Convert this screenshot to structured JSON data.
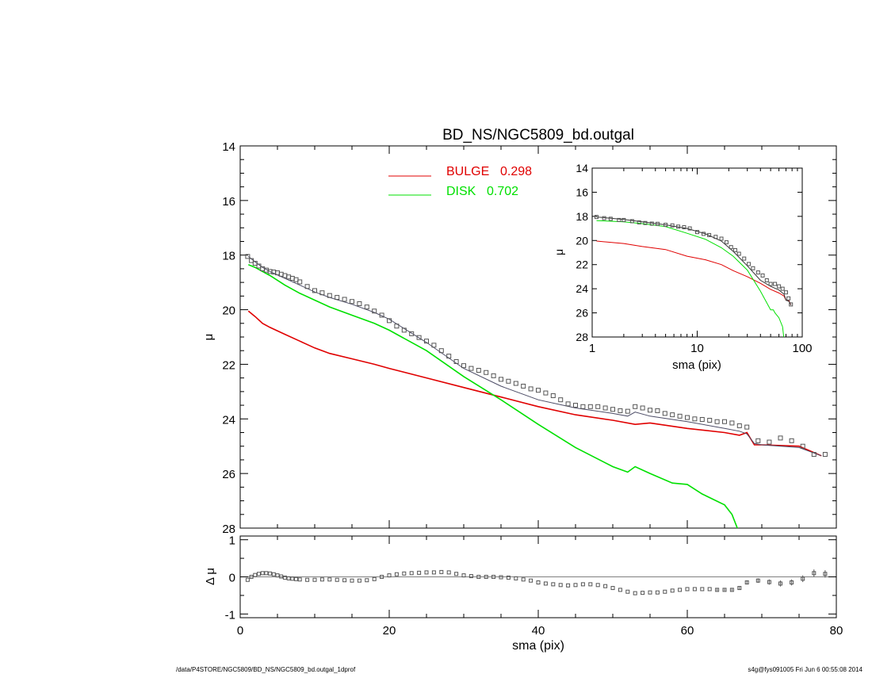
{
  "chart_data": [
    {
      "panel": "main",
      "type": "line",
      "title": "BD_NS/NGC5809_bd.outgal",
      "xlabel": "",
      "ylabel": "μ",
      "xlim": [
        0,
        80
      ],
      "ylim": [
        28,
        14
      ],
      "y_inverted": true,
      "yticks": [
        "14",
        "16",
        "18",
        "20",
        "22",
        "24",
        "26",
        "28"
      ],
      "legend_position": "top-center",
      "legend": [
        {
          "label": "BULGE",
          "value": "0.298",
          "color": "#e00000"
        },
        {
          "label": "DISK",
          "value": "0.702",
          "color": "#00e000"
        }
      ],
      "series": [
        {
          "name": "BULGE",
          "color": "#e00000",
          "x": [
            1.1,
            2,
            3,
            4,
            6,
            8,
            10,
            12,
            15,
            18,
            20,
            25,
            30,
            35,
            40,
            45,
            50,
            53,
            55,
            60,
            65,
            67,
            68,
            69,
            70,
            75,
            78
          ],
          "y": [
            20.05,
            20.25,
            20.5,
            20.65,
            20.9,
            21.15,
            21.4,
            21.6,
            21.8,
            22.0,
            22.15,
            22.5,
            22.85,
            23.2,
            23.55,
            23.85,
            24.05,
            24.2,
            24.15,
            24.35,
            24.5,
            24.6,
            24.5,
            24.95,
            24.95,
            25.0,
            25.35
          ]
        },
        {
          "name": "DISK",
          "color": "#00e000",
          "x": [
            1.1,
            2,
            3,
            4,
            6,
            8,
            10,
            12,
            15,
            18,
            20,
            25,
            30,
            35,
            40,
            45,
            50,
            52,
            53,
            55,
            58,
            60,
            62,
            65,
            66,
            67
          ],
          "y": [
            18.35,
            18.45,
            18.6,
            18.75,
            19.1,
            19.4,
            19.65,
            19.9,
            20.2,
            20.5,
            20.75,
            21.5,
            22.45,
            23.3,
            24.2,
            25.05,
            25.75,
            25.95,
            25.75,
            26.0,
            26.35,
            26.4,
            26.75,
            27.15,
            27.5,
            28.2
          ]
        },
        {
          "name": "model",
          "color": "#4c4c66",
          "x": [
            1.1,
            2,
            3,
            4,
            6,
            8,
            10,
            12,
            15,
            18,
            20,
            25,
            30,
            35,
            40,
            45,
            50,
            52,
            53,
            55,
            60,
            65,
            67,
            68,
            69,
            70,
            75,
            78
          ],
          "y": [
            18.05,
            18.25,
            18.45,
            18.6,
            18.85,
            19.1,
            19.35,
            19.55,
            19.8,
            20.1,
            20.35,
            21.2,
            22.15,
            22.8,
            23.3,
            23.6,
            23.8,
            23.9,
            23.75,
            23.9,
            24.1,
            24.35,
            24.45,
            24.55,
            24.9,
            24.95,
            25.05,
            25.35
          ]
        },
        {
          "name": "data",
          "type": "scatter",
          "marker": "square",
          "color": "#555555",
          "x": [
            1,
            1.5,
            2,
            2.5,
            3,
            3.5,
            4,
            4.5,
            5,
            5.5,
            6,
            6.5,
            7,
            7.5,
            8,
            9,
            10,
            11,
            12,
            13,
            14,
            15,
            16,
            17,
            18,
            19,
            20,
            21,
            22,
            23,
            24,
            25,
            26,
            27,
            28,
            29,
            30,
            31,
            32,
            33,
            34,
            35,
            36,
            37,
            38,
            39,
            40,
            41,
            42,
            43,
            44,
            45,
            46,
            47,
            48,
            49,
            50,
            51,
            52,
            53,
            54,
            55,
            56,
            57,
            58,
            59,
            60,
            61,
            62,
            63,
            64,
            65,
            66,
            67,
            68,
            69.5,
            71,
            72.5,
            74,
            75.5,
            77,
            78.5
          ],
          "y": [
            18.05,
            18.2,
            18.3,
            18.4,
            18.5,
            18.55,
            18.6,
            18.62,
            18.65,
            18.7,
            18.75,
            18.8,
            18.85,
            18.9,
            18.98,
            19.15,
            19.3,
            19.38,
            19.48,
            19.55,
            19.62,
            19.7,
            19.78,
            19.9,
            20.05,
            20.2,
            20.4,
            20.6,
            20.75,
            20.88,
            21.02,
            21.15,
            21.3,
            21.5,
            21.7,
            21.9,
            22.05,
            22.15,
            22.22,
            22.3,
            22.42,
            22.55,
            22.62,
            22.7,
            22.8,
            22.9,
            22.95,
            23.05,
            23.15,
            23.3,
            23.45,
            23.5,
            23.55,
            23.55,
            23.55,
            23.6,
            23.65,
            23.7,
            23.72,
            23.55,
            23.6,
            23.68,
            23.7,
            23.8,
            23.85,
            23.9,
            23.95,
            24.0,
            24.02,
            24.05,
            24.1,
            24.1,
            24.15,
            24.25,
            24.3,
            24.8,
            24.85,
            24.7,
            24.8,
            25.0,
            25.3,
            25.3
          ]
        }
      ]
    },
    {
      "panel": "inset",
      "type": "line",
      "xlabel": "sma (pix)",
      "ylabel": "μ",
      "x_scale": "log",
      "xlim": [
        1,
        100
      ],
      "ylim": [
        28,
        14
      ],
      "y_inverted": true,
      "xticks": [
        "1",
        "10",
        "100"
      ],
      "yticks": [
        "14",
        "16",
        "18",
        "20",
        "22",
        "24",
        "26",
        "28"
      ],
      "series": [
        {
          "name": "BULGE",
          "color": "#e00000",
          "x": [
            1.1,
            2,
            3,
            5,
            8,
            12,
            17,
            22,
            30,
            40,
            50,
            60,
            67,
            70,
            75,
            78
          ],
          "y": [
            20.05,
            20.25,
            20.5,
            20.75,
            21.3,
            21.6,
            22.0,
            22.5,
            23.0,
            23.55,
            24.05,
            24.35,
            24.6,
            24.95,
            25.0,
            25.35
          ]
        },
        {
          "name": "DISK",
          "color": "#00e000",
          "x": [
            1.1,
            2,
            3,
            5,
            8,
            12,
            17,
            22,
            30,
            40,
            50,
            53,
            55,
            60,
            65,
            67
          ],
          "y": [
            18.35,
            18.45,
            18.6,
            18.85,
            19.4,
            19.9,
            20.6,
            21.3,
            22.45,
            24.2,
            25.75,
            25.75,
            26.0,
            26.4,
            27.15,
            28.2
          ]
        },
        {
          "name": "model",
          "color": "#333333",
          "x": [
            1.1,
            2,
            3,
            5,
            8,
            12,
            17,
            22,
            30,
            40,
            50,
            60,
            67,
            70,
            75,
            78
          ],
          "y": [
            18.05,
            18.25,
            18.45,
            18.7,
            19.0,
            19.45,
            20.05,
            20.9,
            22.1,
            23.3,
            23.8,
            24.1,
            24.45,
            24.95,
            25.05,
            25.35
          ]
        },
        {
          "name": "data",
          "type": "scatter",
          "marker": "square",
          "color": "#555555",
          "x": [
            1.1,
            1.3,
            1.5,
            1.8,
            2,
            2.4,
            2.8,
            3.2,
            3.7,
            4.2,
            5,
            5.8,
            6.6,
            7.5,
            8.5,
            10,
            11.5,
            13,
            15,
            17,
            19,
            21,
            23,
            25,
            28,
            31,
            34,
            38,
            42,
            46,
            50,
            55,
            60,
            65,
            70,
            74,
            78
          ],
          "y": [
            18.05,
            18.15,
            18.2,
            18.3,
            18.3,
            18.4,
            18.5,
            18.55,
            18.6,
            18.62,
            18.7,
            18.75,
            18.85,
            18.9,
            19.0,
            19.3,
            19.45,
            19.55,
            19.7,
            19.85,
            20.15,
            20.55,
            20.8,
            21.1,
            21.5,
            21.95,
            22.3,
            22.65,
            22.9,
            23.3,
            23.6,
            23.6,
            23.8,
            24.0,
            24.3,
            24.8,
            25.3
          ]
        }
      ]
    },
    {
      "panel": "residual",
      "type": "scatter",
      "xlabel": "sma (pix)",
      "ylabel": "Δ μ",
      "xlim": [
        0,
        80
      ],
      "ylim": [
        -1.1,
        1.1
      ],
      "xticks": [
        "0",
        "20",
        "40",
        "60",
        "80"
      ],
      "yticks": [
        "1",
        "0",
        "-1"
      ],
      "series": [
        {
          "name": "residual",
          "marker": "square",
          "color": "#555555",
          "x": [
            1,
            1.5,
            2,
            2.5,
            3,
            3.5,
            4,
            4.5,
            5,
            5.5,
            6,
            6.5,
            7,
            7.5,
            8,
            9,
            10,
            11,
            12,
            13,
            14,
            15,
            16,
            17,
            18,
            19,
            20,
            21,
            22,
            23,
            24,
            25,
            26,
            27,
            28,
            29,
            30,
            31,
            32,
            33,
            34,
            35,
            36,
            37,
            38,
            39,
            40,
            41,
            42,
            43,
            44,
            45,
            46,
            47,
            48,
            49,
            50,
            51,
            52,
            53,
            54,
            55,
            56,
            57,
            58,
            59,
            60,
            61,
            62,
            63,
            64,
            65,
            66,
            67,
            68,
            69.5,
            71,
            72.5,
            74,
            75.5,
            77,
            78.5
          ],
          "y": [
            -0.08,
            0.0,
            0.05,
            0.08,
            0.1,
            0.1,
            0.09,
            0.07,
            0.04,
            0.01,
            -0.02,
            -0.04,
            -0.05,
            -0.06,
            -0.07,
            -0.08,
            -0.08,
            -0.07,
            -0.07,
            -0.08,
            -0.09,
            -0.1,
            -0.1,
            -0.09,
            -0.06,
            0.0,
            0.04,
            0.07,
            0.09,
            0.1,
            0.11,
            0.12,
            0.12,
            0.13,
            0.12,
            0.08,
            0.04,
            0.02,
            0.0,
            0.0,
            0.0,
            -0.01,
            -0.02,
            -0.04,
            -0.07,
            -0.1,
            -0.15,
            -0.18,
            -0.2,
            -0.22,
            -0.23,
            -0.22,
            -0.2,
            -0.2,
            -0.22,
            -0.25,
            -0.3,
            -0.35,
            -0.4,
            -0.44,
            -0.43,
            -0.42,
            -0.42,
            -0.4,
            -0.37,
            -0.35,
            -0.33,
            -0.33,
            -0.33,
            -0.33,
            -0.35,
            -0.35,
            -0.35,
            -0.3,
            -0.15,
            -0.1,
            -0.14,
            -0.18,
            -0.15,
            -0.05,
            0.1,
            0.08
          ],
          "error": [
            0.01,
            0.01,
            0.01,
            0.01,
            0.01,
            0.01,
            0.01,
            0.01,
            0.01,
            0.01,
            0.01,
            0.01,
            0.01,
            0.01,
            0.01,
            0.01,
            0.01,
            0.01,
            0.01,
            0.01,
            0.01,
            0.01,
            0.01,
            0.01,
            0.01,
            0.01,
            0.01,
            0.01,
            0.01,
            0.01,
            0.01,
            0.01,
            0.01,
            0.01,
            0.01,
            0.01,
            0.01,
            0.01,
            0.01,
            0.01,
            0.01,
            0.01,
            0.01,
            0.01,
            0.01,
            0.01,
            0.01,
            0.01,
            0.01,
            0.01,
            0.01,
            0.01,
            0.01,
            0.01,
            0.01,
            0.01,
            0.02,
            0.02,
            0.02,
            0.02,
            0.02,
            0.02,
            0.02,
            0.02,
            0.02,
            0.02,
            0.02,
            0.02,
            0.02,
            0.02,
            0.03,
            0.03,
            0.03,
            0.03,
            0.05,
            0.06,
            0.07,
            0.08,
            0.08,
            0.09,
            0.1,
            0.1
          ]
        }
      ]
    }
  ],
  "footer": {
    "path": "/data/P4STORE/NGC5809/BD_NS/NGC5809_bd.outgal_1dprof",
    "stamp": "s4g@fys091005  Fri Jun  6 00:55:08 2014"
  }
}
